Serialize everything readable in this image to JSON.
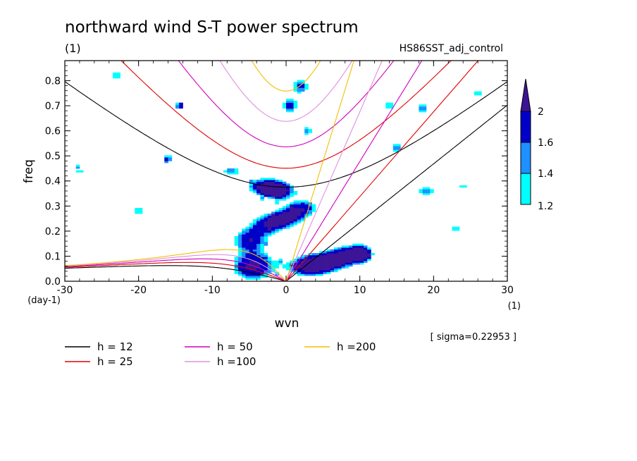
{
  "chart_data": {
    "type": "heatmap",
    "title": "northward wind S-T power spectrum",
    "subtitle": "(1)",
    "case_label": "HS86SST_adj_control",
    "xlabel": "wvn",
    "ylabel": "freq",
    "x_unit": "(1)",
    "y_unit": "(day-1)",
    "xlim": [
      -30,
      30
    ],
    "ylim": [
      0,
      0.88
    ],
    "x_ticks": [
      -30,
      -20,
      -10,
      0,
      10,
      20,
      30
    ],
    "x_tick_labels": [
      "-30",
      "-20",
      "-10",
      "0",
      "10",
      "20",
      "30"
    ],
    "y_ticks": [
      0,
      0.1,
      0.2,
      0.3,
      0.4,
      0.5,
      0.6,
      0.7,
      0.8
    ],
    "y_tick_labels": [
      "0.0",
      "0.1",
      "0.2",
      "0.3",
      "0.4",
      "0.5",
      "0.6",
      "0.7",
      "0.8"
    ],
    "sigma_label": "[ sigma=0.22953 ]",
    "colorbar": {
      "levels": [
        1.2,
        1.4,
        1.6,
        2
      ],
      "level_labels": [
        "1.2",
        "1.4",
        "1.6",
        "2"
      ],
      "colors": [
        "#00ffff",
        "#1e90ff",
        "#0000c8",
        "#3c1496"
      ]
    },
    "dispersion_curves": [
      {
        "h": 12,
        "label": "h = 12",
        "color": "#000000"
      },
      {
        "h": 25,
        "label": "h = 25",
        "color": "#e00000"
      },
      {
        "h": 50,
        "label": "h = 50",
        "color": "#d000c0"
      },
      {
        "h": 100,
        "label": "h =100",
        "color": "#e090e0"
      },
      {
        "h": 200,
        "label": "h =200",
        "color": "#f0c000"
      }
    ],
    "blobs": [
      {
        "x": 3.0,
        "y": 0.06,
        "sx": 2.2,
        "sy": 0.035,
        "a": 2.1
      },
      {
        "x": 6.0,
        "y": 0.08,
        "sx": 2.0,
        "sy": 0.03,
        "a": 1.8
      },
      {
        "x": 8.5,
        "y": 0.11,
        "sx": 1.8,
        "sy": 0.03,
        "a": 1.7
      },
      {
        "x": -4.5,
        "y": 0.06,
        "sx": 2.5,
        "sy": 0.05,
        "a": 2.1
      },
      {
        "x": -5.0,
        "y": 0.17,
        "sx": 2.0,
        "sy": 0.035,
        "a": 1.7
      },
      {
        "x": -2.0,
        "y": 0.23,
        "sx": 2.2,
        "sy": 0.03,
        "a": 1.8
      },
      {
        "x": 0.5,
        "y": 0.26,
        "sx": 2.0,
        "sy": 0.025,
        "a": 1.6
      },
      {
        "x": 2.5,
        "y": 0.3,
        "sx": 1.8,
        "sy": 0.025,
        "a": 1.6
      },
      {
        "x": -3.0,
        "y": 0.38,
        "sx": 2.2,
        "sy": 0.03,
        "a": 1.8
      },
      {
        "x": -1.0,
        "y": 0.36,
        "sx": 1.6,
        "sy": 0.025,
        "a": 2.0
      },
      {
        "x": 0.5,
        "y": 0.7,
        "sx": 1.0,
        "sy": 0.03,
        "a": 1.7
      },
      {
        "x": 2.0,
        "y": 0.78,
        "sx": 1.0,
        "sy": 0.03,
        "a": 1.7
      },
      {
        "x": 2.8,
        "y": 0.6,
        "sx": 0.8,
        "sy": 0.02,
        "a": 1.5
      },
      {
        "x": -7.5,
        "y": 0.44,
        "sx": 1.2,
        "sy": 0.02,
        "a": 1.5
      },
      {
        "x": 15.0,
        "y": 0.53,
        "sx": 0.8,
        "sy": 0.02,
        "a": 1.6
      },
      {
        "x": 18.5,
        "y": 0.69,
        "sx": 0.9,
        "sy": 0.02,
        "a": 1.6
      },
      {
        "x": 19.0,
        "y": 0.36,
        "sx": 1.2,
        "sy": 0.02,
        "a": 1.5
      },
      {
        "x": 10.5,
        "y": 0.11,
        "sx": 1.2,
        "sy": 0.03,
        "a": 1.5
      },
      {
        "x": -14.5,
        "y": 0.7,
        "sx": 0.7,
        "sy": 0.02,
        "a": 1.6
      },
      {
        "x": -16.0,
        "y": 0.49,
        "sx": 0.8,
        "sy": 0.02,
        "a": 1.5
      },
      {
        "x": -20.0,
        "y": 0.28,
        "sx": 0.8,
        "sy": 0.02,
        "a": 1.4
      },
      {
        "x": -23.0,
        "y": 0.82,
        "sx": 0.8,
        "sy": 0.02,
        "a": 1.4
      },
      {
        "x": 26.0,
        "y": 0.75,
        "sx": 0.8,
        "sy": 0.02,
        "a": 1.4
      },
      {
        "x": -28.0,
        "y": 0.44,
        "sx": 0.8,
        "sy": 0.02,
        "a": 1.3
      },
      {
        "x": 24.0,
        "y": 0.38,
        "sx": 0.8,
        "sy": 0.02,
        "a": 1.3
      },
      {
        "x": 23.0,
        "y": 0.21,
        "sx": 0.8,
        "sy": 0.02,
        "a": 1.3
      },
      {
        "x": 14.0,
        "y": 0.7,
        "sx": 0.9,
        "sy": 0.02,
        "a": 1.4
      }
    ]
  }
}
